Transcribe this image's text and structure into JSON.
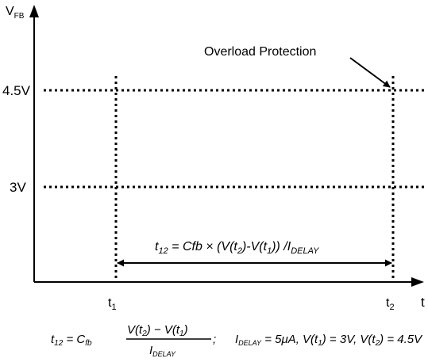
{
  "axes": {
    "y_label_main": "V",
    "y_label_sub": "FB",
    "x_label": "t"
  },
  "levels": [
    {
      "label": "4.5V"
    },
    {
      "label": "3V"
    }
  ],
  "times": [
    {
      "main": "t",
      "sub": "1"
    },
    {
      "main": "t",
      "sub": "2"
    }
  ],
  "callout": {
    "label": "Overload Protection"
  },
  "interval": {
    "t": "t",
    "t_sub": "12",
    "eq_a": " = Cfb × (V(t",
    "sub_2": "2",
    "eq_b": ")-V(t",
    "sub_1": "1",
    "eq_c": ")) /I",
    "i_sub": "DELAY"
  },
  "formula": {
    "t": "t",
    "t_sub": "12",
    "eq": " = C",
    "c_sub": "fb",
    "num_a": "V(t",
    "num_sub2": "2",
    "num_b": ") − V(t",
    "num_sub1": "1",
    "num_c": ")",
    "den_i": "I",
    "den_sub": "DELAY",
    "semicolon": ";",
    "cond_i": "I",
    "cond_i_sub": "DELAY",
    "cond_a": " = 5μA, V(t",
    "cond_sub1": "1",
    "cond_b": ") = 3V, V(t",
    "cond_sub2": "2",
    "cond_c": ") = 4.5V"
  }
}
